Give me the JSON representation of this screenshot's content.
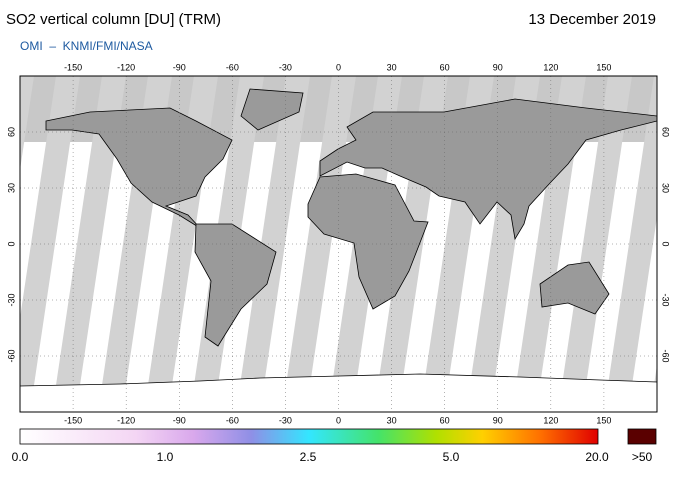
{
  "header": {
    "title": "SO2 vertical column [DU] (TRM)",
    "date": "13 December 2019",
    "source": "OMI  –  KNMI/FMI/NASA"
  },
  "map": {
    "lon_ticks": [
      -150,
      -120,
      -90,
      -60,
      -30,
      0,
      30,
      60,
      90,
      120,
      150
    ],
    "lat_ticks": [
      -60,
      -30,
      0,
      30,
      60
    ]
  },
  "colorbar": {
    "labels": [
      "0.0",
      "1.0",
      "2.5",
      "5.0",
      "20.0"
    ],
    "overflow_label": ">50"
  }
}
